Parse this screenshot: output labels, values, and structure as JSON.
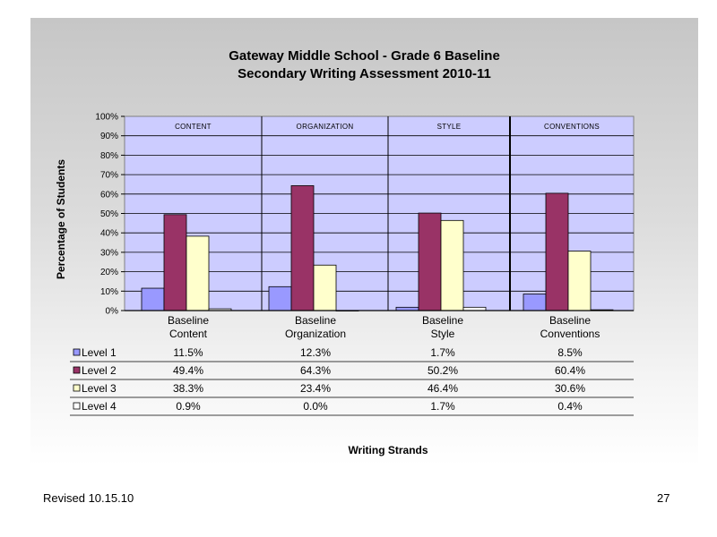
{
  "chart_data": {
    "type": "bar",
    "title_line1": "Gateway Middle School  - Grade 6 Baseline",
    "title_line2": "Secondary Writing Assessment  2010-11",
    "ylabel": "Percentage of Students",
    "xlabel": "Writing Strands",
    "ylim": [
      0,
      100
    ],
    "yticks": [
      "0%",
      "10%",
      "20%",
      "30%",
      "40%",
      "50%",
      "60%",
      "70%",
      "80%",
      "90%",
      "100%"
    ],
    "region_labels": [
      "CONTENT",
      "ORGANIZATION",
      "STYLE",
      "CONVENTIONS"
    ],
    "categories": [
      [
        "Baseline",
        "Content"
      ],
      [
        "Baseline",
        "Organization"
      ],
      [
        "Baseline",
        "Style"
      ],
      [
        "Baseline",
        "Conventions"
      ]
    ],
    "series": [
      {
        "name": "Level 1",
        "color": "#9999ff",
        "values": [
          11.5,
          12.3,
          1.7,
          8.5
        ],
        "labels": [
          "11.5%",
          "12.3%",
          "1.7%",
          "8.5%"
        ]
      },
      {
        "name": "Level 2",
        "color": "#993366",
        "values": [
          49.4,
          64.3,
          50.2,
          60.4
        ],
        "labels": [
          "49.4%",
          "64.3%",
          "50.2%",
          "60.4%"
        ]
      },
      {
        "name": "Level 3",
        "color": "#ffffcc",
        "values": [
          38.3,
          23.4,
          46.4,
          30.6
        ],
        "labels": [
          "38.3%",
          "23.4%",
          "46.4%",
          "30.6%"
        ]
      },
      {
        "name": "Level 4",
        "color": "#ffffff",
        "values": [
          0.9,
          0.0,
          1.7,
          0.4
        ],
        "labels": [
          "0.9%",
          "0.0%",
          "1.7%",
          "0.4%"
        ]
      }
    ],
    "plot_background": "#ccccff",
    "grid": true
  },
  "footer": {
    "revised": "Revised  10.15.10",
    "page_number": "27"
  }
}
